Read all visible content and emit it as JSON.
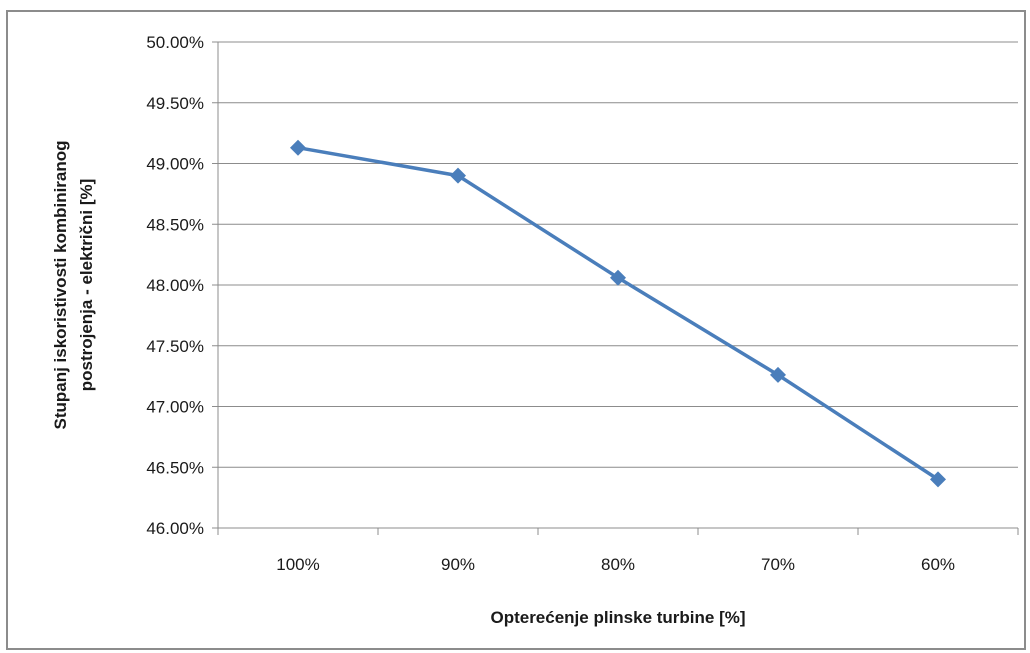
{
  "chart_data": {
    "type": "line",
    "xlabel": "Opterećenje plinske turbine [%]",
    "ylabel_line1": "Stupanj iskoristivosti kombiniranog",
    "ylabel_line2": "postrojenja - električni  [%]",
    "categories": [
      "100%",
      "90%",
      "80%",
      "70%",
      "60%"
    ],
    "series": [
      {
        "values": [
          49.13,
          48.9,
          48.06,
          47.26,
          46.4
        ]
      }
    ],
    "ylim": [
      46.0,
      50.0
    ],
    "y_ticks": [
      46.0,
      46.5,
      47.0,
      47.5,
      48.0,
      48.5,
      49.0,
      49.5,
      50.0
    ],
    "y_tick_labels": [
      "46.00%",
      "46.50%",
      "47.00%",
      "47.50%",
      "48.00%",
      "48.50%",
      "49.00%",
      "49.50%",
      "50.00%"
    ],
    "grid": true,
    "legend": "none",
    "marker": "diamond",
    "line_color": "#4a7ebb",
    "grid_color": "#8c8c8c"
  }
}
